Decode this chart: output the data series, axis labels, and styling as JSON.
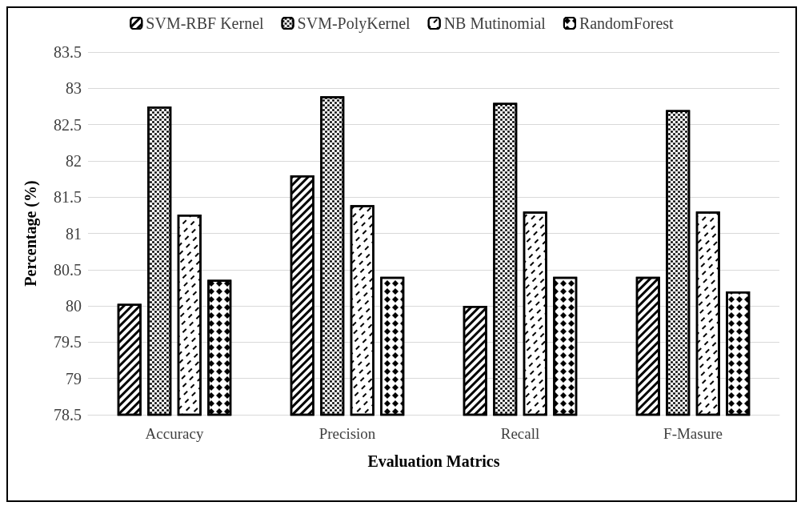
{
  "chart_data": {
    "type": "bar",
    "xlabel": "Evaluation Matrics",
    "ylabel": "Percentage (%)",
    "categories": [
      "Accuracy",
      "Precision",
      "Recall",
      "F-Masure"
    ],
    "series": [
      {
        "name": "SVM-RBF Kernel",
        "color": "#000000",
        "values": [
          80.03,
          81.8,
          80.0,
          80.4
        ]
      },
      {
        "name": "SVM-PolyKernel",
        "color": "#000000",
        "values": [
          82.75,
          82.89,
          82.8,
          82.7
        ]
      },
      {
        "name": "NB Mutinomial",
        "color": "#000000",
        "values": [
          81.26,
          81.39,
          81.3,
          81.3
        ]
      },
      {
        "name": "RandomForest",
        "color": "#000000",
        "values": [
          80.36,
          80.4,
          80.4,
          80.2
        ]
      }
    ],
    "ylim": [
      78.5,
      83.5
    ],
    "yticks": [
      78.5,
      79,
      79.5,
      80,
      80.5,
      81,
      81.5,
      82,
      82.5,
      83,
      83.5
    ],
    "grid": "y",
    "legend": "top"
  }
}
